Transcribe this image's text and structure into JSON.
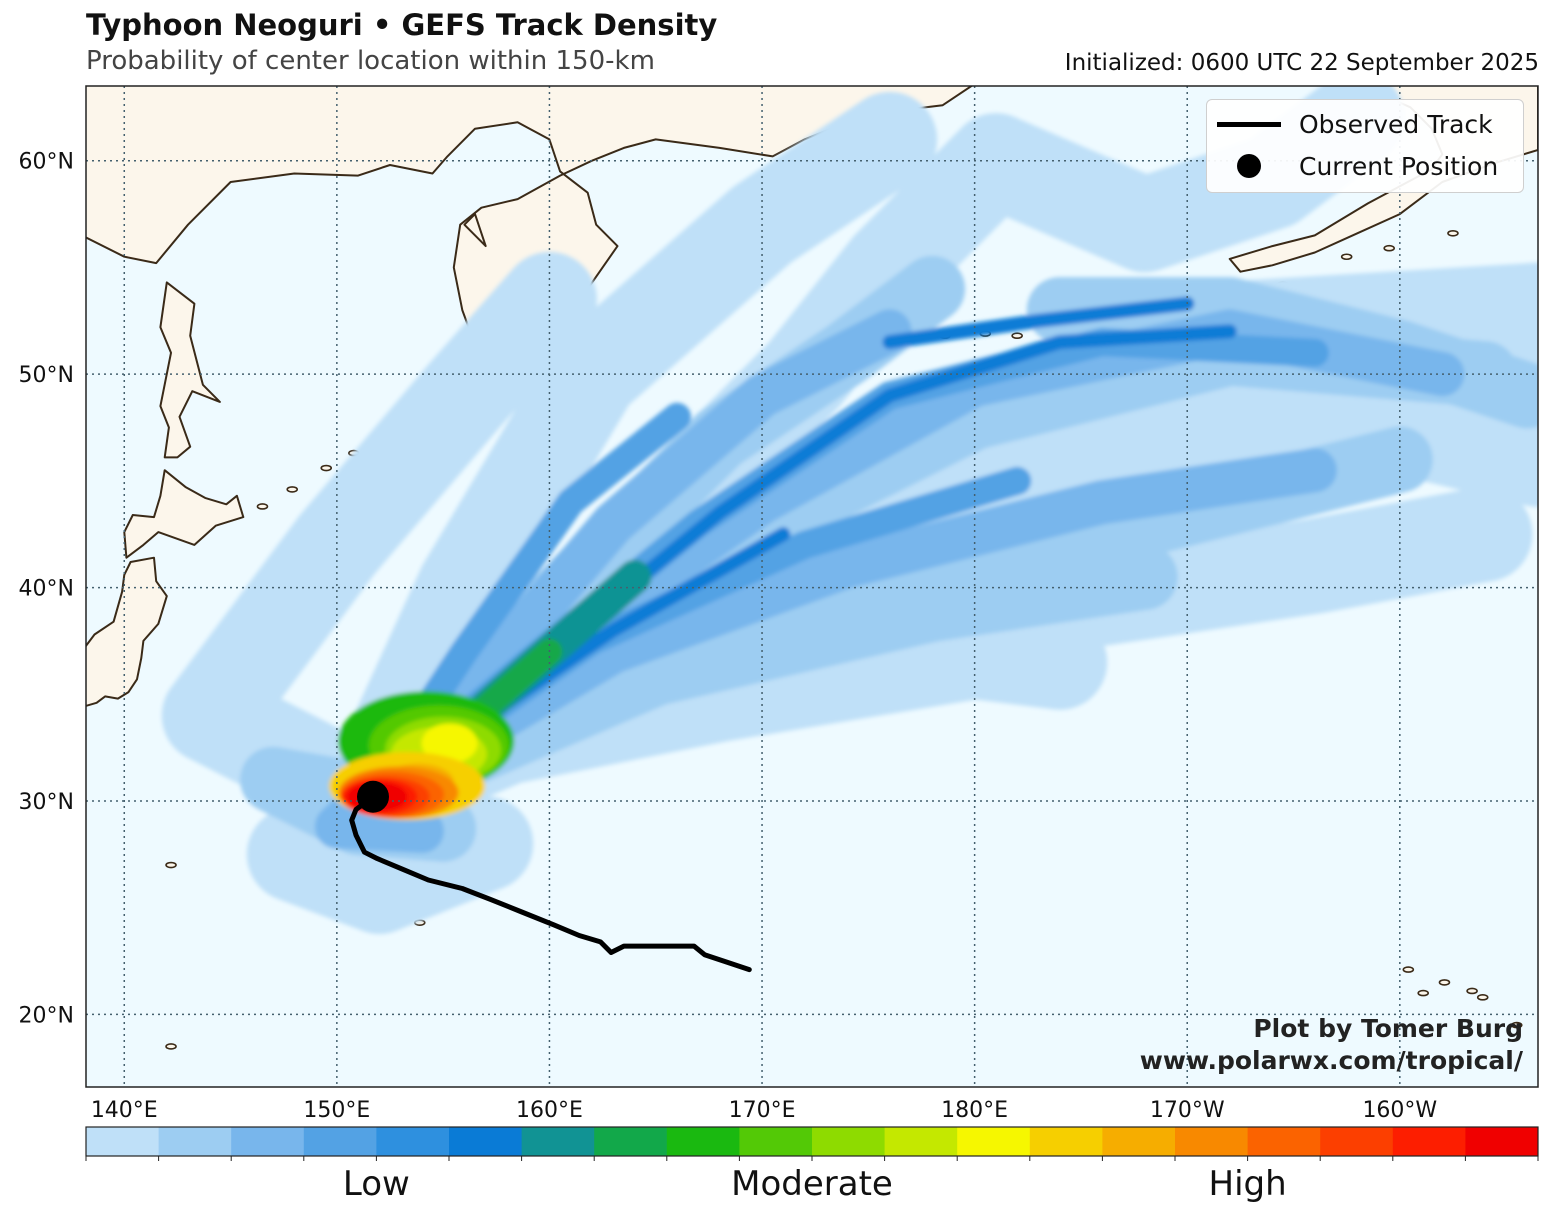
{
  "header": {
    "title": "Typhoon Neoguri • GEFS Track Density",
    "subtitle": "Probability of center location within 150-km",
    "initialized": "Initialized: 0600 UTC 22 September 2025"
  },
  "map": {
    "extent": {
      "lon_west": 138.2,
      "lon_east": 206.5,
      "lat_south": 16.6,
      "lat_north": 63.5
    },
    "latitude_labels": [
      "20°N",
      "30°N",
      "40°N",
      "50°N",
      "60°N"
    ],
    "longitude_labels": [
      "140°E",
      "150°E",
      "160°E",
      "170°E",
      "180°E",
      "170°W",
      "160°W"
    ],
    "gridlines": "dotted",
    "ocean_color": "#eefaff",
    "land_color": "#fcf6eb",
    "coast_color": "#3a2a18"
  },
  "legend": {
    "items": [
      {
        "label": "Observed Track",
        "icon": "line-icon"
      },
      {
        "label": "Current Position",
        "icon": "dot-icon"
      }
    ],
    "placement": "top-right"
  },
  "observed_track": {
    "points": [
      [
        169.4,
        22.1
      ],
      [
        168.2,
        22.5
      ],
      [
        167.3,
        22.8
      ],
      [
        166.8,
        23.2
      ],
      [
        164.5,
        23.2
      ],
      [
        163.5,
        23.2
      ],
      [
        162.9,
        22.9
      ],
      [
        162.4,
        23.4
      ],
      [
        161.4,
        23.7
      ],
      [
        160.2,
        24.2
      ],
      [
        158.7,
        24.8
      ],
      [
        157.2,
        25.4
      ],
      [
        155.9,
        25.9
      ],
      [
        154.3,
        26.3
      ],
      [
        153.1,
        26.8
      ],
      [
        151.9,
        27.3
      ],
      [
        151.3,
        27.6
      ],
      [
        150.9,
        28.4
      ],
      [
        150.7,
        29.1
      ],
      [
        150.9,
        29.6
      ],
      [
        151.7,
        30.2
      ]
    ],
    "current_position": [
      151.7,
      30.2
    ]
  },
  "colorbar": {
    "colors": [
      "#bfe0f8",
      "#9dcdf2",
      "#78b6ec",
      "#53a2e4",
      "#2e90df",
      "#0a7bd6",
      "#119394",
      "#12a84a",
      "#1ab910",
      "#53c906",
      "#8edb00",
      "#c4e800",
      "#f6f700",
      "#f6cf00",
      "#f6ad00",
      "#f88900",
      "#fb6300",
      "#fc3f00",
      "#fd1e00",
      "#f00000"
    ],
    "labels": [
      {
        "text": "Low",
        "position": 0.2
      },
      {
        "text": "Moderate",
        "position": 0.5
      },
      {
        "text": "High",
        "position": 0.8
      }
    ]
  },
  "credit": {
    "line1": "Plot by Tomer Burg",
    "line2": "www.polarwx.com/tropical/"
  }
}
